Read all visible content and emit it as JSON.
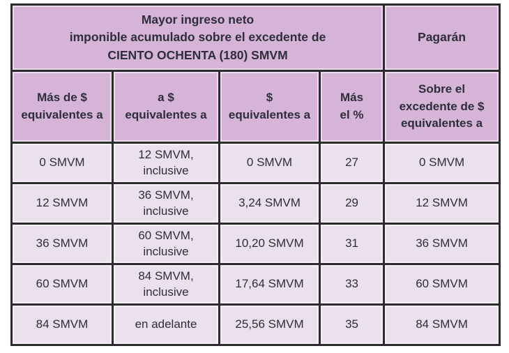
{
  "colors": {
    "header_bg": "#d5b4d8",
    "cell_bg": "#ebe1ec",
    "border": "#2b2b2b",
    "text": "#2e2e3a"
  },
  "table": {
    "title_cell": "Mayor ingreso neto\nimponible acumulado sobre el excedente de\nCIENTO OCHENTA (180) SMVM",
    "pagaran_cell": "Pagarán",
    "column_headers": [
      "Más de $\nequivalentes a",
      "a $\nequivalentes a",
      "$\nequivalentes a",
      "Más\nel %",
      "Sobre el\nexcedente de $\nequivalentes a"
    ],
    "rows": [
      [
        "0 SMVM",
        "12 SMVM,\ninclusive",
        "0 SMVM",
        "27",
        "0 SMVM"
      ],
      [
        "12 SMVM",
        "36 SMVM,\ninclusive",
        "3,24 SMVM",
        "29",
        "12 SMVM"
      ],
      [
        "36 SMVM",
        "60 SMVM,\ninclusive",
        "10,20 SMVM",
        "31",
        "36 SMVM"
      ],
      [
        "60 SMVM",
        "84 SMVM,\ninclusive",
        "17,64 SMVM",
        "33",
        "60 SMVM"
      ],
      [
        "84 SMVM",
        "en adelante",
        "25,56 SMVM",
        "35",
        "84 SMVM"
      ]
    ]
  },
  "chart_data": {
    "type": "table",
    "title": "Mayor ingreso neto imponible acumulado sobre el excedente de CIENTO OCHENTA (180) SMVM / Pagarán",
    "columns": [
      "Más de $ equivalentes a",
      "a $ equivalentes a",
      "$ equivalentes a",
      "Más el %",
      "Sobre el excedente de $ equivalentes a"
    ],
    "rows": [
      [
        "0 SMVM",
        "12 SMVM, inclusive",
        "0 SMVM",
        27,
        "0 SMVM"
      ],
      [
        "12 SMVM",
        "36 SMVM, inclusive",
        "3,24 SMVM",
        29,
        "12 SMVM"
      ],
      [
        "36 SMVM",
        "60 SMVM, inclusive",
        "10,20 SMVM",
        31,
        "36 SMVM"
      ],
      [
        "60 SMVM",
        "84 SMVM, inclusive",
        "17,64 SMVM",
        33,
        "60 SMVM"
      ],
      [
        "84 SMVM",
        "en adelante",
        "25,56 SMVM",
        35,
        "84 SMVM"
      ]
    ]
  }
}
